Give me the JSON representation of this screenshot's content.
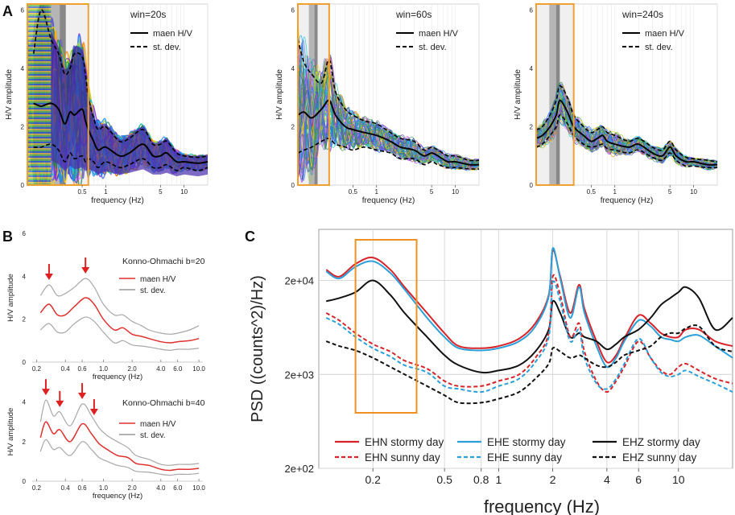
{
  "panels": {
    "a": {
      "letter": "A"
    },
    "b": {
      "letter": "B"
    },
    "c": {
      "letter": "C"
    }
  },
  "chart_data": [
    {
      "id": "a1",
      "type": "line",
      "title": "win=20s",
      "xlabel": "frequency (Hz)",
      "ylabel": "H/V amplitude",
      "xscale": "log",
      "xlim": [
        0.1,
        20
      ],
      "ylim": [
        0,
        6.2
      ],
      "xticks": [
        {
          "v": 0.5,
          "label": "0.5"
        },
        {
          "v": 1,
          "label": "1"
        },
        {
          "v": 5,
          "label": "5"
        },
        {
          "v": 10,
          "label": "10"
        }
      ],
      "yticks": [
        {
          "v": 0,
          "label": "0"
        },
        {
          "v": 2,
          "label": "2"
        },
        {
          "v": 4,
          "label": "4"
        },
        {
          "v": 6,
          "label": "6"
        }
      ],
      "legend": [
        {
          "label": "maen H/V",
          "style": "solid"
        },
        {
          "label": "st. dev.",
          "style": "dashed"
        }
      ],
      "highlight_hz": [
        0.1,
        0.6
      ],
      "x": [
        0.12,
        0.15,
        0.2,
        0.25,
        0.3,
        0.35,
        0.4,
        0.5,
        0.55,
        0.6,
        0.7,
        0.8,
        1,
        1.5,
        2,
        3,
        4,
        5,
        6,
        8,
        10,
        15,
        20
      ],
      "series": [
        {
          "name": "maen H/V",
          "values": [
            2.8,
            2.7,
            2.8,
            2.6,
            2.1,
            2.5,
            2.4,
            2.6,
            2.2,
            1.9,
            1.5,
            1.2,
            1.3,
            1.0,
            1.1,
            1.4,
            1.0,
            1.0,
            1.1,
            0.8,
            0.8,
            0.75,
            0.8
          ]
        },
        {
          "name": "st. dev. upper",
          "values": [
            4.5,
            6.0,
            5.0,
            4.5,
            3.8,
            4.0,
            4.5,
            4.4,
            3.8,
            3.0,
            2.3,
            1.9,
            2.0,
            1.5,
            1.6,
            1.9,
            1.4,
            1.4,
            1.5,
            1.1,
            1.0,
            0.95,
            1.0
          ]
        },
        {
          "name": "st. dev. lower",
          "values": [
            1.3,
            1.3,
            1.4,
            1.2,
            0.8,
            1.1,
            0.9,
            1.0,
            0.8,
            0.9,
            0.8,
            0.6,
            0.8,
            0.6,
            0.7,
            0.9,
            0.6,
            0.6,
            0.7,
            0.5,
            0.6,
            0.5,
            0.6
          ]
        }
      ]
    },
    {
      "id": "a2",
      "type": "line",
      "title": "win=60s",
      "xlabel": "frequency (Hz)",
      "ylabel": "H/V amplitude",
      "xscale": "log",
      "xlim": [
        0.1,
        20
      ],
      "ylim": [
        0,
        6.2
      ],
      "xticks": [
        {
          "v": 0.5,
          "label": "0.5"
        },
        {
          "v": 1,
          "label": "1"
        },
        {
          "v": 5,
          "label": "5"
        },
        {
          "v": 10,
          "label": "10"
        }
      ],
      "yticks": [
        {
          "v": 0,
          "label": "0"
        },
        {
          "v": 2,
          "label": "2"
        },
        {
          "v": 4,
          "label": "4"
        },
        {
          "v": 6,
          "label": "6"
        }
      ],
      "legend": [
        {
          "label": "maen H/V",
          "style": "solid"
        },
        {
          "label": "st. dev.",
          "style": "dashed"
        }
      ],
      "highlight_hz": [
        0.1,
        0.25
      ],
      "x": [
        0.1,
        0.12,
        0.15,
        0.2,
        0.25,
        0.3,
        0.4,
        0.5,
        0.7,
        1,
        1.5,
        2,
        3,
        4,
        5,
        6,
        8,
        10,
        15,
        20
      ],
      "series": [
        {
          "name": "maen H/V",
          "values": [
            2.4,
            2.5,
            2.3,
            2.6,
            2.9,
            2.4,
            2.0,
            1.9,
            1.8,
            1.7,
            1.5,
            1.3,
            1.2,
            1.0,
            1.1,
            1.0,
            0.8,
            0.8,
            0.7,
            0.7
          ]
        },
        {
          "name": "st. dev. upper",
          "values": [
            5.0,
            4.2,
            3.8,
            3.5,
            4.3,
            3.2,
            2.6,
            2.4,
            2.2,
            2.1,
            1.8,
            1.6,
            1.5,
            1.2,
            1.3,
            1.2,
            1.0,
            1.0,
            0.85,
            0.85
          ]
        },
        {
          "name": "st. dev. lower",
          "values": [
            1.1,
            1.2,
            1.3,
            1.5,
            1.6,
            1.4,
            1.3,
            1.2,
            1.3,
            1.2,
            1.1,
            0.9,
            0.9,
            0.7,
            0.8,
            0.7,
            0.6,
            0.6,
            0.55,
            0.55
          ]
        }
      ]
    },
    {
      "id": "a3",
      "type": "line",
      "title": "win=240s",
      "xlabel": "frequency (Hz)",
      "ylabel": "H/V amplitude",
      "xscale": "log",
      "xlim": [
        0.1,
        20
      ],
      "ylim": [
        0,
        6.2
      ],
      "xticks": [
        {
          "v": 0.5,
          "label": "0.5"
        },
        {
          "v": 1,
          "label": "1"
        },
        {
          "v": 5,
          "label": "5"
        },
        {
          "v": 10,
          "label": "10"
        }
      ],
      "yticks": [
        {
          "v": 0,
          "label": "0"
        },
        {
          "v": 2,
          "label": "2"
        },
        {
          "v": 4,
          "label": "4"
        },
        {
          "v": 6,
          "label": "6"
        }
      ],
      "legend": [
        {
          "label": "maen H/V",
          "style": "solid"
        },
        {
          "label": "st. dev.",
          "style": "dashed"
        }
      ],
      "highlight_hz": [
        0.1,
        0.3
      ],
      "x": [
        0.1,
        0.12,
        0.15,
        0.18,
        0.2,
        0.25,
        0.3,
        0.4,
        0.5,
        0.6,
        0.7,
        0.8,
        1,
        1.5,
        2,
        3,
        4,
        5,
        6,
        8,
        10,
        15,
        20
      ],
      "series": [
        {
          "name": "maen H/V",
          "values": [
            1.6,
            1.7,
            2.0,
            2.4,
            2.9,
            2.5,
            2.0,
            1.7,
            1.5,
            1.6,
            1.7,
            1.5,
            1.4,
            1.3,
            1.4,
            1.1,
            1.0,
            1.3,
            1.0,
            0.8,
            0.8,
            0.7,
            0.7
          ]
        },
        {
          "name": "st. dev. upper",
          "values": [
            1.9,
            2.0,
            2.4,
            2.9,
            3.4,
            3.0,
            2.4,
            2.0,
            1.8,
            1.9,
            2.0,
            1.8,
            1.7,
            1.5,
            1.6,
            1.3,
            1.2,
            1.5,
            1.2,
            0.95,
            0.9,
            0.85,
            0.8
          ]
        },
        {
          "name": "st. dev. lower",
          "values": [
            1.3,
            1.4,
            1.7,
            2.0,
            2.4,
            2.1,
            1.7,
            1.4,
            1.3,
            1.35,
            1.4,
            1.25,
            1.2,
            1.1,
            1.2,
            0.95,
            0.85,
            1.1,
            0.85,
            0.65,
            0.65,
            0.6,
            0.6
          ]
        }
      ]
    },
    {
      "id": "b1",
      "type": "line",
      "title": "Konno-Ohmachi b=20",
      "xlabel": "frequency (Hz)",
      "ylabel": "H/V amplitude",
      "xscale": "log",
      "xlim": [
        0.18,
        11
      ],
      "ylim": [
        0,
        6
      ],
      "xticks": [
        {
          "v": 0.2,
          "label": "0.2"
        },
        {
          "v": 0.4,
          "label": "0.4"
        },
        {
          "v": 0.6,
          "label": "0.6"
        },
        {
          "v": 1,
          "label": "1.0"
        },
        {
          "v": 2,
          "label": "2.0"
        },
        {
          "v": 4,
          "label": "4.0"
        },
        {
          "v": 6,
          "label": "6.0"
        },
        {
          "v": 10,
          "label": "10.0"
        }
      ],
      "yticks": [
        {
          "v": 0,
          "label": "0"
        },
        {
          "v": 2,
          "label": "2"
        },
        {
          "v": 4,
          "label": "4"
        },
        {
          "v": 6,
          "label": "6"
        }
      ],
      "legend": [
        {
          "label": "maen H/V",
          "style": "red"
        },
        {
          "label": "st. dev.",
          "style": "gray"
        }
      ],
      "arrows_hz": [
        0.27,
        0.65
      ],
      "x": [
        0.22,
        0.27,
        0.33,
        0.4,
        0.5,
        0.65,
        0.8,
        1.0,
        1.3,
        1.6,
        2.0,
        2.5,
        3.0,
        4.0,
        5.0,
        6.0,
        8.0,
        10.0
      ],
      "series": [
        {
          "name": "maen H/V",
          "values": [
            2.3,
            2.7,
            2.2,
            2.2,
            2.6,
            3.0,
            2.7,
            2.0,
            1.5,
            1.6,
            1.3,
            1.2,
            1.1,
            0.95,
            0.9,
            0.95,
            1.0,
            1.1
          ]
        },
        {
          "name": "st. dev. upper",
          "values": [
            3.1,
            3.6,
            3.1,
            3.2,
            3.5,
            3.9,
            3.5,
            2.7,
            2.2,
            2.2,
            1.9,
            1.7,
            1.5,
            1.35,
            1.3,
            1.35,
            1.5,
            1.7
          ]
        },
        {
          "name": "st. dev. lower",
          "values": [
            1.5,
            1.8,
            1.4,
            1.4,
            1.8,
            2.1,
            1.9,
            1.4,
            0.9,
            1.0,
            0.8,
            0.75,
            0.7,
            0.6,
            0.55,
            0.6,
            0.6,
            0.65
          ]
        }
      ]
    },
    {
      "id": "b2",
      "type": "line",
      "title": "Konno-Ohmachi b=40",
      "xlabel": "frequency (Hz)",
      "ylabel": "H/V amplitude",
      "xscale": "log",
      "xlim": [
        0.18,
        11
      ],
      "ylim": [
        0,
        5
      ],
      "xticks": [
        {
          "v": 0.2,
          "label": "0.2"
        },
        {
          "v": 0.4,
          "label": "0.4"
        },
        {
          "v": 0.6,
          "label": "0.6"
        },
        {
          "v": 1,
          "label": "1.0"
        },
        {
          "v": 2,
          "label": "2.0"
        },
        {
          "v": 4,
          "label": "4.0"
        },
        {
          "v": 6,
          "label": "6.0"
        },
        {
          "v": 10,
          "label": "10.0"
        }
      ],
      "yticks": [
        {
          "v": 0,
          "label": "0"
        },
        {
          "v": 2,
          "label": "2"
        },
        {
          "v": 4,
          "label": "4"
        }
      ],
      "legend": [
        {
          "label": "maen H/V",
          "style": "red"
        },
        {
          "label": "st. dev.",
          "style": "gray"
        }
      ],
      "arrows_hz": [
        0.25,
        0.35,
        0.6,
        0.8
      ],
      "x": [
        0.22,
        0.25,
        0.3,
        0.35,
        0.45,
        0.6,
        0.75,
        0.9,
        1.1,
        1.4,
        1.8,
        2.2,
        3.0,
        4.0,
        5.0,
        6.0,
        8.0,
        10.0
      ],
      "series": [
        {
          "name": "maen H/V",
          "values": [
            2.2,
            3.0,
            2.4,
            2.6,
            2.0,
            2.9,
            2.4,
            1.9,
            1.6,
            1.3,
            1.2,
            0.9,
            0.8,
            0.6,
            0.55,
            0.6,
            0.6,
            0.65
          ]
        },
        {
          "name": "st. dev. upper",
          "values": [
            3.0,
            4.1,
            3.3,
            3.5,
            2.8,
            3.9,
            3.3,
            2.7,
            2.3,
            2.0,
            1.7,
            1.3,
            1.1,
            0.85,
            0.8,
            0.85,
            0.85,
            0.9
          ]
        },
        {
          "name": "st. dev. lower",
          "values": [
            1.5,
            2.1,
            1.6,
            1.7,
            1.3,
            2.0,
            1.6,
            1.2,
            1.0,
            0.8,
            0.7,
            0.5,
            0.45,
            0.35,
            0.3,
            0.35,
            0.35,
            0.4
          ]
        }
      ]
    },
    {
      "id": "c",
      "type": "line",
      "xlabel": "frequency (Hz)",
      "ylabel": "PSD ((counts^2)/Hz)",
      "xscale": "log",
      "yscale": "log",
      "xlim": [
        0.1,
        20
      ],
      "ylim": [
        200,
        70000
      ],
      "xticks": [
        {
          "v": 0.2,
          "label": "0.2"
        },
        {
          "v": 0.5,
          "label": "0.5"
        },
        {
          "v": 0.8,
          "label": "0.8"
        },
        {
          "v": 1,
          "label": "1"
        },
        {
          "v": 2,
          "label": "2"
        },
        {
          "v": 4,
          "label": "4"
        },
        {
          "v": 6,
          "label": "6"
        },
        {
          "v": 10,
          "label": "10"
        }
      ],
      "yticks": [
        {
          "v": 200,
          "label": "2e+02"
        },
        {
          "v": 2000,
          "label": "2e+03"
        },
        {
          "v": 20000,
          "label": "2e+04"
        }
      ],
      "highlight_hz": [
        0.16,
        0.35
      ],
      "x": [
        0.11,
        0.13,
        0.16,
        0.2,
        0.25,
        0.3,
        0.4,
        0.5,
        0.6,
        0.8,
        1.0,
        1.3,
        1.6,
        1.9,
        2.0,
        2.2,
        2.5,
        2.8,
        3.0,
        3.5,
        4.0,
        4.5,
        5.0,
        6.0,
        7.0,
        8.0,
        9.0,
        10.0,
        11.0,
        13.0,
        16.0,
        20.0
      ],
      "series": [
        {
          "name": "EHN stormy day",
          "color": "#d8232a",
          "dash": false,
          "values": [
            26000,
            22000,
            30000,
            35000,
            26000,
            17000,
            9000,
            5500,
            4000,
            3800,
            4000,
            4800,
            7000,
            14000,
            42000,
            22000,
            9000,
            18000,
            10000,
            4500,
            2700,
            3200,
            4800,
            8500,
            7000,
            5500,
            5000,
            5000,
            6000,
            6000,
            4500,
            4000
          ]
        },
        {
          "name": "EHE stormy day",
          "color": "#2b9fd9",
          "dash": false,
          "values": [
            25000,
            21000,
            28000,
            32000,
            24000,
            16000,
            8000,
            5000,
            3800,
            3600,
            3800,
            4500,
            6500,
            13500,
            44000,
            21000,
            8000,
            17000,
            9000,
            4000,
            2400,
            3000,
            4500,
            7500,
            6500,
            5000,
            4700,
            4500,
            5000,
            5200,
            4000,
            3000
          ]
        },
        {
          "name": "EHZ stormy day",
          "color": "#111111",
          "dash": false,
          "values": [
            12000,
            13000,
            15000,
            20000,
            14000,
            9000,
            5000,
            3200,
            2500,
            2100,
            2200,
            2500,
            3500,
            6000,
            12000,
            9000,
            5000,
            5500,
            5000,
            4500,
            3700,
            4200,
            5000,
            6000,
            8000,
            11000,
            13000,
            15000,
            17000,
            13000,
            6000,
            8000
          ]
        },
        {
          "name": "EHN sunny day",
          "color": "#d8232a",
          "dash": true,
          "values": [
            9000,
            7500,
            5500,
            4200,
            3500,
            2800,
            2300,
            1700,
            1500,
            1500,
            1700,
            2000,
            3000,
            5500,
            22000,
            14000,
            5000,
            7000,
            3500,
            1700,
            1300,
            1700,
            2400,
            4500,
            3000,
            2200,
            2000,
            2400,
            2600,
            2200,
            1800,
            1600
          ]
        },
        {
          "name": "EHE sunny day",
          "color": "#2b9fd9",
          "dash": true,
          "values": [
            8000,
            6800,
            5000,
            3800,
            3100,
            2500,
            2100,
            1500,
            1400,
            1300,
            1500,
            1800,
            2700,
            5000,
            19000,
            12000,
            4500,
            6000,
            3000,
            1600,
            1400,
            1800,
            2600,
            4800,
            3000,
            2100,
            1900,
            2000,
            2200,
            1900,
            1600,
            1300
          ]
        },
        {
          "name": "EHZ sunny day",
          "color": "#111111",
          "dash": true,
          "values": [
            4500,
            4000,
            3600,
            3000,
            2400,
            2000,
            1500,
            1200,
            1000,
            1000,
            1100,
            1300,
            1800,
            2600,
            3800,
            3500,
            3000,
            3200,
            3000,
            2500,
            2400,
            2700,
            3200,
            3600,
            4000,
            5000,
            5500,
            5500,
            6200,
            6500,
            4000,
            3500
          ]
        }
      ]
    }
  ]
}
